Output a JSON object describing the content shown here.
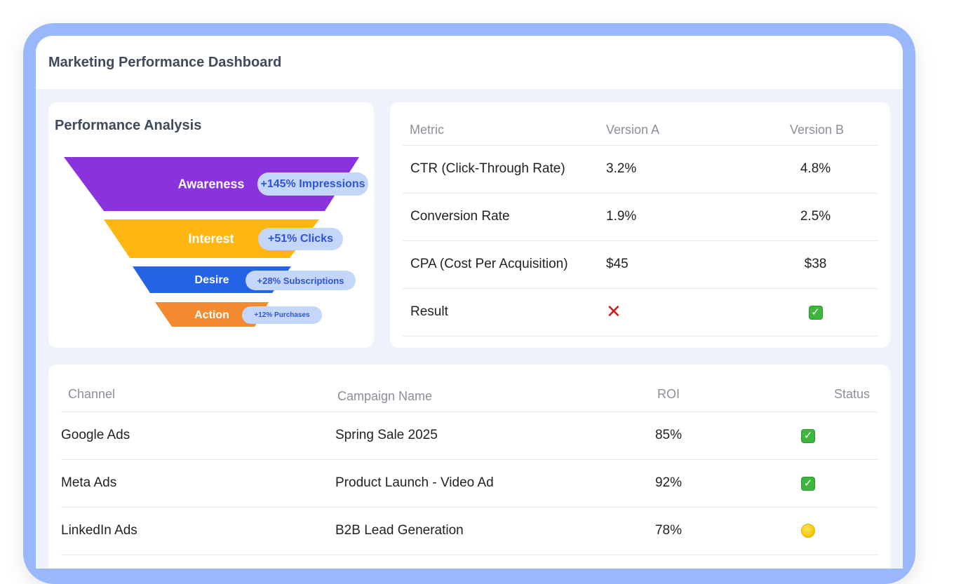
{
  "dashboard": {
    "title": "Marketing Performance Dashboard"
  },
  "funnel": {
    "title": "Performance Analysis",
    "stages": [
      {
        "label": "Awareness",
        "metric": "+145% Impressions",
        "color": "#8a32de"
      },
      {
        "label": "Interest",
        "metric": "+51% Clicks",
        "color": "#fdb612"
      },
      {
        "label": "Desire",
        "metric": "+28% Subscriptions",
        "color": "#2563e6"
      },
      {
        "label": "Action",
        "metric": "+12% Purchases",
        "color": "#f48a2f"
      }
    ],
    "pill_color": "#c5d6fb",
    "pill_text_color": "#2d55d6"
  },
  "ab_test": {
    "headers": [
      "Metric",
      "Version A",
      "Version B"
    ],
    "rows": [
      {
        "metric": "CTR (Click-Through Rate)",
        "a": "3.2%",
        "b": "4.8%"
      },
      {
        "metric": "Conversion Rate",
        "a": "1.9%",
        "b": "2.5%"
      },
      {
        "metric": "CPA (Cost Per Acquisition)",
        "a": "$45",
        "b": "$38"
      }
    ],
    "result": {
      "label": "Result",
      "a_icon": "cross-mark-icon",
      "b_icon": "check-mark-icon",
      "a_glyph": "✕",
      "b_glyph": "✓"
    }
  },
  "channels": {
    "headers": [
      "Channel",
      "Campaign Name",
      "ROI",
      "Status"
    ],
    "rows": [
      {
        "channel": "Google Ads",
        "campaign": "Spring Sale 2025",
        "roi": "85%",
        "status_icon": "check-mark-icon",
        "glyph": "✓"
      },
      {
        "channel": "Meta Ads",
        "campaign": "Product Launch - Video Ad",
        "roi": "92%",
        "status_icon": "check-mark-icon",
        "glyph": "✓"
      },
      {
        "channel": "LinkedIn Ads",
        "campaign": "B2B Lead Generation",
        "roi": "78%",
        "status_icon": "yellow-circle-icon"
      }
    ]
  },
  "colors": {
    "frame": "#99b8fb",
    "background": "#edf2fb",
    "success": "#3fb53d",
    "failure": "#d81818",
    "pending": "#f4c400"
  }
}
